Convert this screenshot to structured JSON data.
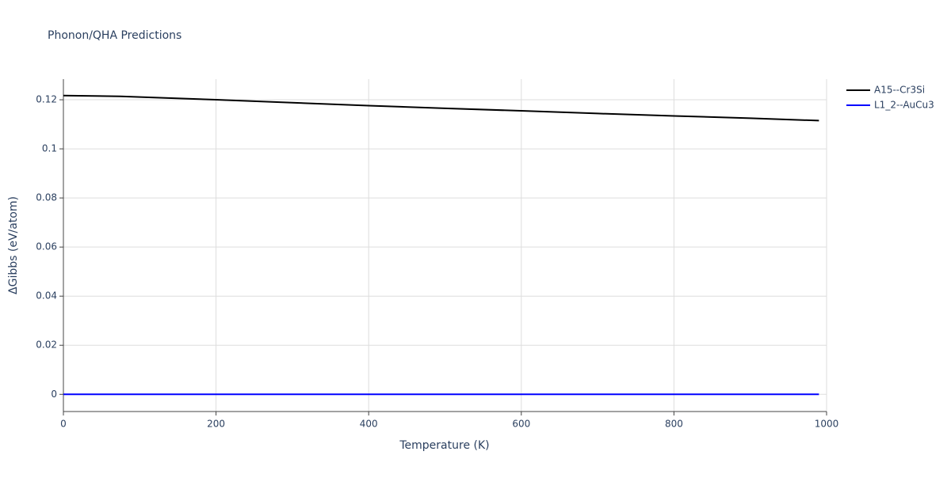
{
  "chart_data": {
    "type": "line",
    "title": "Phonon/QHA Predictions",
    "xlabel": "Temperature (K)",
    "ylabel": "ΔGibbs (eV/atom)",
    "x": [
      0,
      75,
      200,
      300,
      400,
      500,
      600,
      700,
      800,
      900,
      990
    ],
    "series": [
      {
        "name": "A15--Cr3Si",
        "color": "#000000",
        "values": [
          0.1217,
          0.1214,
          0.12,
          0.1188,
          0.1176,
          0.1165,
          0.1155,
          0.1144,
          0.1134,
          0.1125,
          0.1115
        ]
      },
      {
        "name": "L1_2--AuCu3",
        "color": "#0000ff",
        "values": [
          0,
          0,
          0,
          0,
          0,
          0,
          0,
          0,
          0,
          0,
          0
        ]
      }
    ],
    "xlim": [
      0,
      1000
    ],
    "xticks": [
      0,
      200,
      400,
      600,
      800,
      1000
    ],
    "ylim": [
      -0.007,
      0.1284
    ],
    "yticks": [
      0,
      0.02,
      0.04,
      0.06,
      0.08,
      0.1,
      0.12
    ],
    "grid": true,
    "legend": "right"
  }
}
